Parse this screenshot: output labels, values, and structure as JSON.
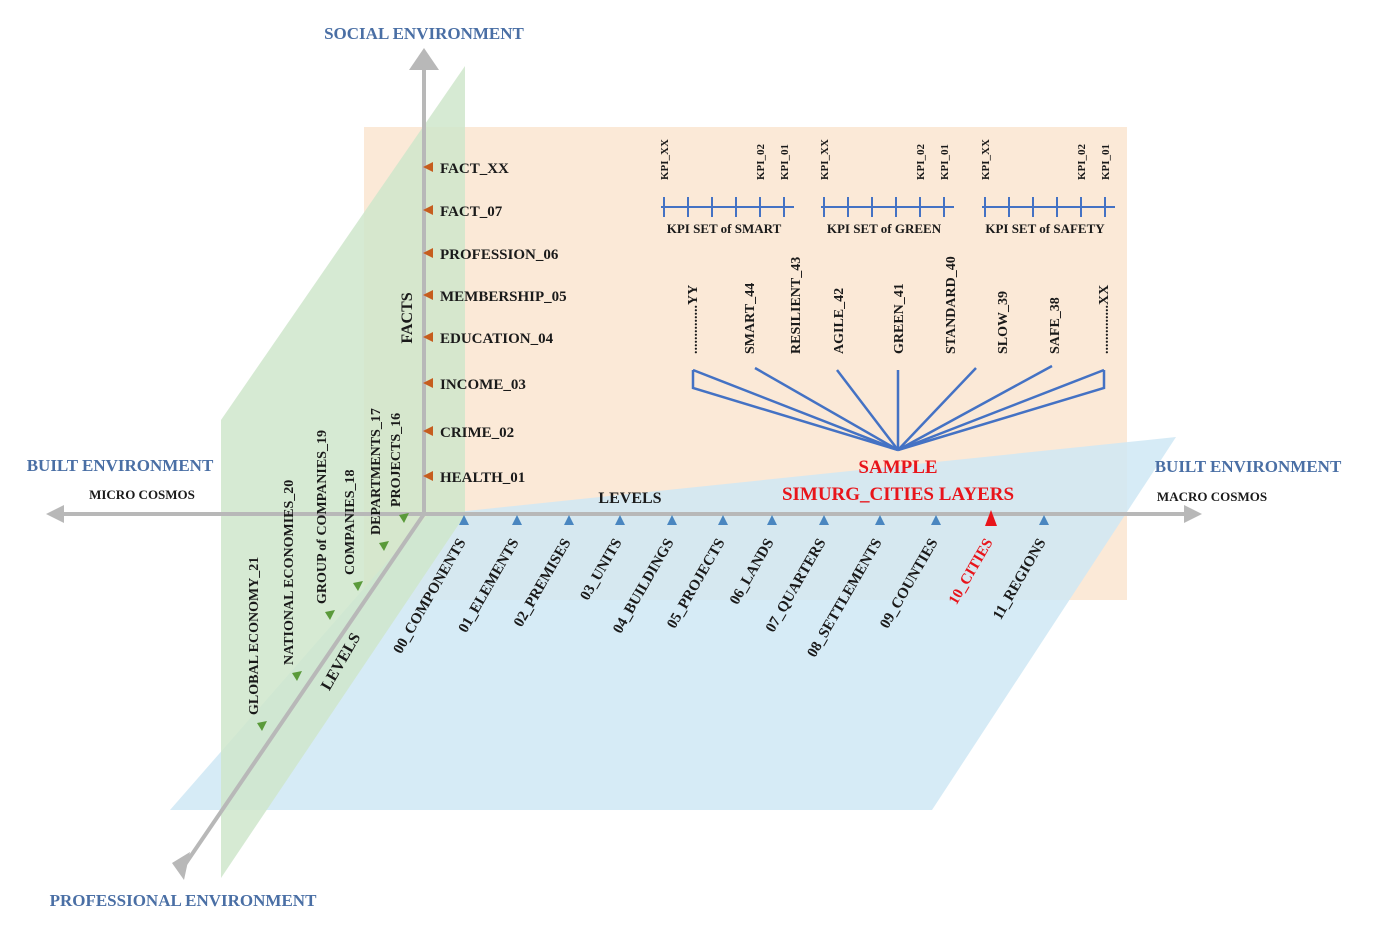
{
  "axes": {
    "social": "SOCIAL ENVIRONMENT",
    "built_left": "BUILT ENVIRONMENT",
    "micro": "MICRO COSMOS",
    "built_right": "BUILT ENVIRONMENT",
    "macro": "MACRO COSMOS",
    "professional": "PROFESSIONAL ENVIRONMENT"
  },
  "labels": {
    "facts": "FACTS",
    "levels_h": "LEVELS",
    "levels_d": "LEVELS"
  },
  "facts": [
    "FACT_XX",
    "FACT_07",
    "PROFESSION_06",
    "MEMBERSHIP_05",
    "EDUCATION_04",
    "INCOME_03",
    "CRIME_02",
    "HEALTH_01"
  ],
  "built_levels": [
    "00_COMPONENTS",
    "01_ELEMENTS",
    "02_PREMISES",
    "03_UNITS",
    "04_BUILDINGS",
    "05_PROJECTS",
    "06_LANDS",
    "07_QUARTERS",
    "08_SETTLEMENTS",
    "09_COUNTIES",
    "10_CITIES",
    "11_REGIONS"
  ],
  "highlight_level": "10_CITIES",
  "professional_levels": [
    "PROJECTS_16",
    "DEPARTMENTS_17",
    "COMPANIES_18",
    "GROUP of COMPANIES_19",
    "NATIONAL ECONOMIES_20",
    "GLOBAL ECONOMY_21"
  ],
  "kpi_sets": [
    {
      "label": "KPI SET of SMART",
      "first": "KPI_XX",
      "second": "KPI_02",
      "third": "KPI_01"
    },
    {
      "label": "KPI SET of GREEN",
      "first": "KPI_XX",
      "second": "KPI_02",
      "third": "KPI_01"
    },
    {
      "label": "KPI SET of SAFETY",
      "first": "KPI_XX",
      "second": "KPI_02",
      "third": "KPI_01"
    }
  ],
  "layers": [
    "..............YY",
    "SMART_44",
    "RESILIENT_43",
    "AGILE_42",
    "GREEN_41",
    "STANDARD_40",
    "SLOW_39",
    "SAFE_38",
    "..............XX"
  ],
  "sample": {
    "line1": "SAMPLE",
    "line2": "SIMURG_CITIES LAYERS"
  },
  "colors": {
    "facts_plane": "#fbe9d7",
    "built_plane": "#d5ecf6",
    "prof_plane": "#d7ecd4",
    "axis": "#b5b5b5",
    "kpi_blue": "#4472c4",
    "fact_marker": "#c65d1e",
    "level_marker": "#4a86c0",
    "prof_marker": "#5a9a3a",
    "highlight": "#e8151b"
  }
}
